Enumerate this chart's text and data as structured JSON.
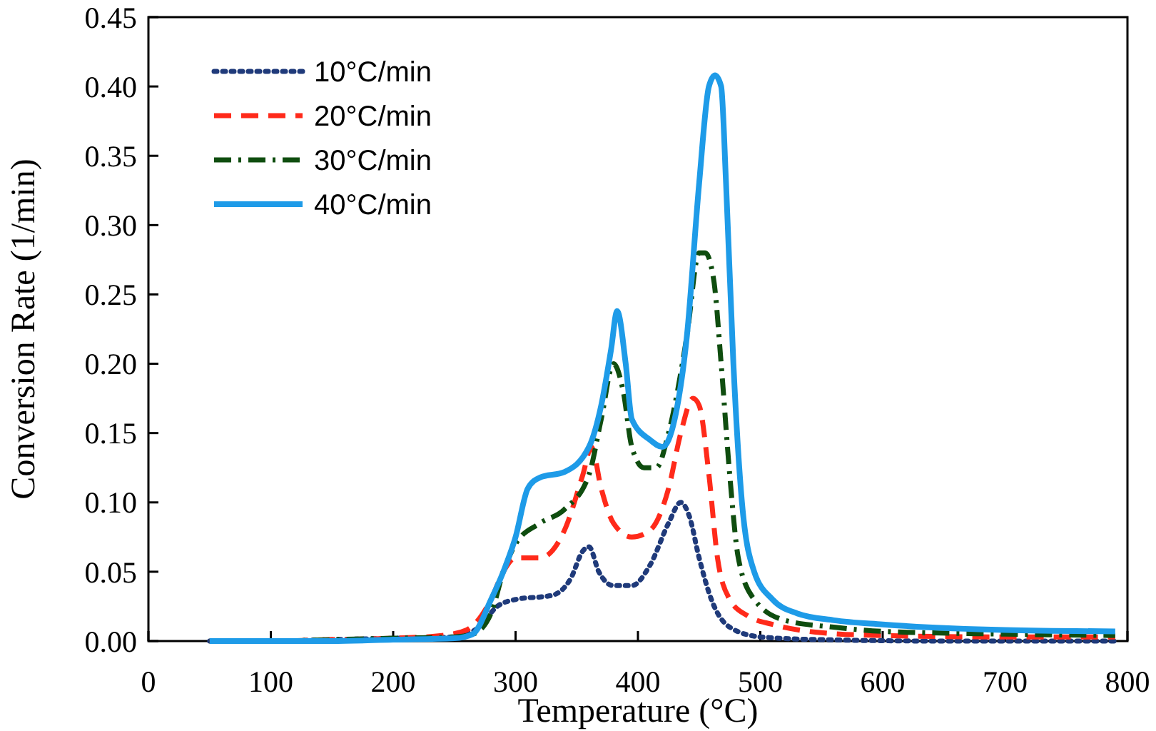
{
  "chart_data": {
    "type": "line",
    "xlabel": "Temperature (°C)",
    "ylabel": "Conversion Rate (1/min)",
    "xlim": [
      0,
      800
    ],
    "xticks": [
      0,
      100,
      200,
      300,
      400,
      500,
      600,
      700,
      800
    ],
    "ylim": [
      0,
      0.45
    ],
    "yticks": [
      {
        "value": 0,
        "label": "0.00"
      },
      {
        "value": 0.05,
        "label": "0.05"
      },
      {
        "value": 0.1,
        "label": "0.10"
      },
      {
        "value": 0.15,
        "label": "0.15"
      },
      {
        "value": 0.2,
        "label": "0.20"
      },
      {
        "value": 0.25,
        "label": "0.25"
      },
      {
        "value": 0.3,
        "label": "0.30"
      },
      {
        "value": 0.35,
        "label": "0.35"
      },
      {
        "value": 0.4,
        "label": "0.40"
      },
      {
        "value": 0.45,
        "label": "0.45"
      }
    ],
    "grid": false,
    "legend": "top left",
    "marker": "none",
    "series": [
      {
        "name": "10°C/min",
        "color": "#1f3a7a",
        "line_style": "dotted",
        "x": [
          50,
          100,
          150,
          200,
          250,
          270,
          285,
          300,
          330,
          345,
          355,
          360,
          368,
          380,
          395,
          410,
          425,
          435,
          442,
          450,
          460,
          475,
          500,
          550,
          650,
          790
        ],
        "values": [
          0,
          0,
          0.001,
          0.002,
          0.003,
          0.01,
          0.025,
          0.03,
          0.033,
          0.045,
          0.065,
          0.068,
          0.05,
          0.04,
          0.04,
          0.055,
          0.085,
          0.1,
          0.09,
          0.06,
          0.03,
          0.01,
          0.003,
          0.001,
          0,
          0
        ]
      },
      {
        "name": "20°C/min",
        "color": "#ff2a1a",
        "line_style": "dashed",
        "x": [
          50,
          100,
          150,
          200,
          240,
          260,
          280,
          290,
          300,
          320,
          340,
          355,
          362,
          370,
          380,
          395,
          410,
          425,
          435,
          445,
          450,
          458,
          465,
          475,
          490,
          510,
          550,
          600,
          700,
          790
        ],
        "values": [
          0,
          0,
          0.001,
          0.002,
          0.004,
          0.008,
          0.03,
          0.05,
          0.06,
          0.06,
          0.08,
          0.12,
          0.14,
          0.11,
          0.085,
          0.075,
          0.08,
          0.11,
          0.15,
          0.175,
          0.17,
          0.12,
          0.06,
          0.03,
          0.018,
          0.012,
          0.006,
          0.004,
          0.003,
          0.003
        ]
      },
      {
        "name": "30°C/min",
        "color": "#0f4d0f",
        "line_style": "dashdot",
        "x": [
          50,
          100,
          150,
          200,
          250,
          265,
          280,
          290,
          300,
          320,
          340,
          360,
          370,
          380,
          388,
          395,
          405,
          415,
          425,
          440,
          450,
          455,
          462,
          468,
          475,
          482,
          495,
          520,
          560,
          600,
          700,
          790
        ],
        "values": [
          0,
          0,
          0.001,
          0.002,
          0.003,
          0.005,
          0.02,
          0.05,
          0.07,
          0.085,
          0.095,
          0.12,
          0.16,
          0.2,
          0.18,
          0.14,
          0.125,
          0.125,
          0.15,
          0.22,
          0.28,
          0.28,
          0.26,
          0.2,
          0.12,
          0.06,
          0.03,
          0.015,
          0.01,
          0.007,
          0.005,
          0.004
        ]
      },
      {
        "name": "40°C/min",
        "color": "#1e9be8",
        "line_style": "solid",
        "x": [
          50,
          100,
          150,
          200,
          250,
          265,
          280,
          290,
          300,
          310,
          320,
          340,
          360,
          370,
          378,
          383,
          390,
          395,
          410,
          420,
          430,
          440,
          450,
          458,
          463,
          468,
          472,
          478,
          485,
          495,
          510,
          530,
          560,
          600,
          700,
          790
        ],
        "values": [
          0,
          0,
          0,
          0.001,
          0.002,
          0.005,
          0.03,
          0.05,
          0.075,
          0.11,
          0.118,
          0.122,
          0.14,
          0.17,
          0.21,
          0.238,
          0.2,
          0.16,
          0.145,
          0.14,
          0.16,
          0.22,
          0.33,
          0.4,
          0.408,
          0.4,
          0.33,
          0.2,
          0.1,
          0.05,
          0.03,
          0.02,
          0.015,
          0.012,
          0.008,
          0.007
        ]
      }
    ]
  }
}
